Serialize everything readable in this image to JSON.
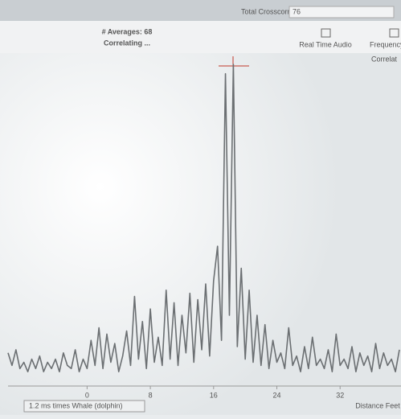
{
  "header": {
    "field_label": "Total Crosscorr",
    "field_value": "76"
  },
  "toolbar": {
    "averages": "# Averages: 68",
    "status": "Correlating ...",
    "buttons": [
      "Real Time Audio",
      "Frequency"
    ]
  },
  "footer": {
    "info": "1.2 ms times Whale (dolphin)"
  },
  "chart_data": {
    "type": "line",
    "title": "Correlat",
    "x_label": "Distance Feet",
    "x": [
      -10,
      -9.5,
      -9,
      -8.5,
      -8,
      -7.5,
      -7,
      -6.5,
      -6,
      -5.5,
      -5,
      -4.5,
      -4,
      -3.5,
      -3,
      -2.5,
      -2,
      -1.5,
      -1,
      -0.5,
      0,
      0.5,
      1,
      1.5,
      2,
      2.5,
      3,
      3.5,
      4,
      4.5,
      5,
      5.5,
      6,
      6.5,
      7,
      7.5,
      8,
      8.5,
      9,
      9.5,
      10,
      10.5,
      11,
      11.5,
      12,
      12.5,
      13,
      13.5,
      14,
      14.5,
      15,
      15.5,
      16,
      16.5,
      17,
      17.5,
      18,
      18.5,
      19,
      19.5,
      20,
      20.5,
      21,
      21.5,
      22,
      22.5,
      23,
      23.5,
      24,
      24.5,
      25,
      25.5,
      26,
      26.5,
      27,
      27.5,
      28,
      28.5,
      29,
      29.5,
      30,
      30.5,
      31,
      31.5,
      32,
      32.5,
      33,
      33.5,
      34,
      34.5,
      35,
      35.5,
      36,
      36.5,
      37,
      37.5,
      38,
      38.5,
      39,
      39.5
    ],
    "series": [
      {
        "color": "#6b6f72",
        "values": [
          8,
          4,
          9,
          3,
          5,
          2,
          6,
          3,
          7,
          2,
          5,
          3,
          6,
          2,
          8,
          4,
          3,
          9,
          2,
          6,
          3,
          12,
          4,
          16,
          3,
          14,
          5,
          11,
          2,
          7,
          15,
          4,
          26,
          6,
          18,
          3,
          22,
          5,
          13,
          4,
          28,
          6,
          24,
          4,
          20,
          8,
          27,
          5,
          25,
          9,
          30,
          7,
          31,
          42,
          12,
          97,
          20,
          100,
          10,
          35,
          6,
          28,
          5,
          20,
          4,
          17,
          3,
          12,
          5,
          8,
          3,
          16,
          4,
          7,
          2,
          10,
          3,
          13,
          4,
          6,
          3,
          9,
          2,
          14,
          4,
          6,
          3,
          10,
          2,
          8,
          4,
          7,
          2,
          11,
          3,
          8,
          4,
          6,
          2,
          9
        ]
      }
    ],
    "xlim": [
      -10,
      39.5
    ],
    "ylim": [
      0,
      100
    ],
    "xticks": [
      0,
      8,
      16,
      24,
      32
    ],
    "grid": false
  }
}
